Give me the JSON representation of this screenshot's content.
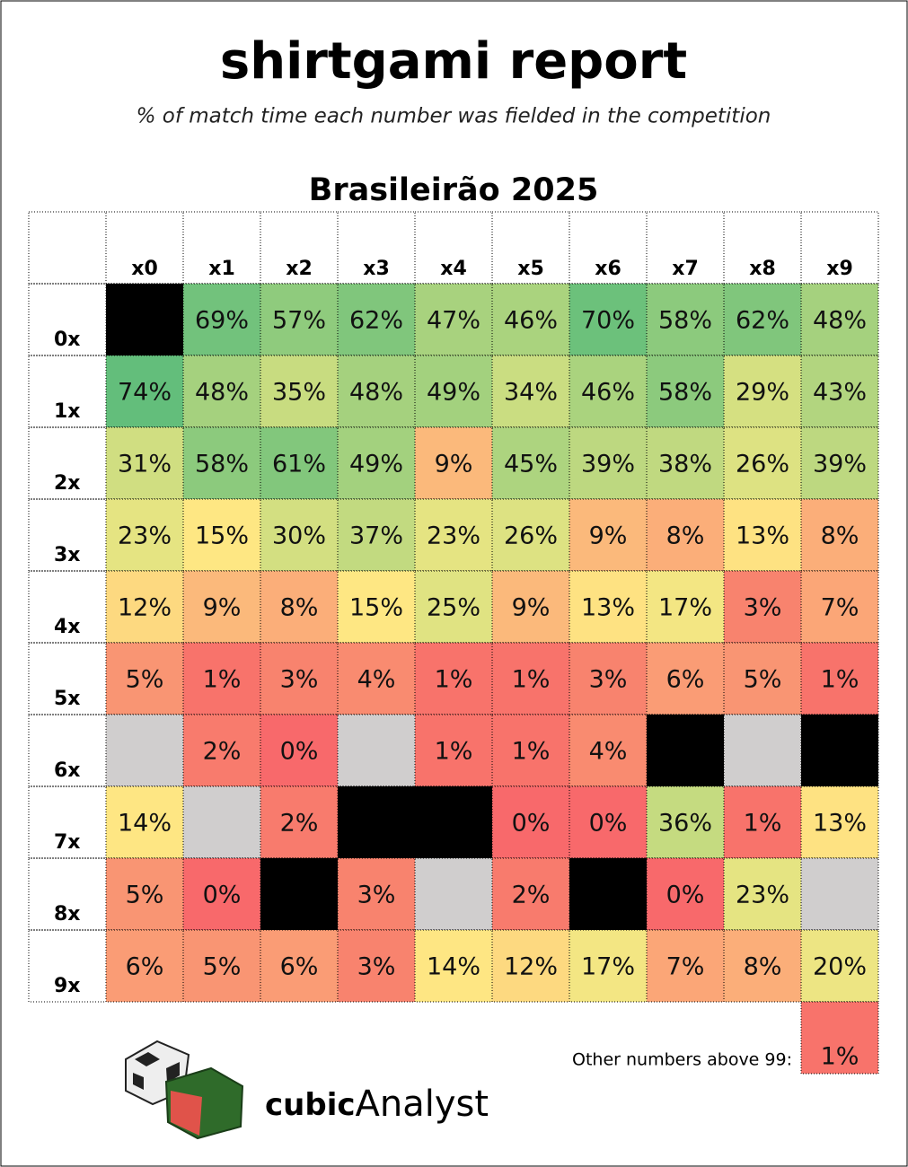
{
  "chart_data": {
    "type": "heatmap",
    "title": "shirtgami report",
    "subtitle": "% of match time each number was fielded in the competition",
    "heading": "Brasileirão 2025",
    "columns": [
      "x0",
      "x1",
      "x2",
      "x3",
      "x4",
      "x5",
      "x6",
      "x7",
      "x8",
      "x9"
    ],
    "rows": [
      "0x",
      "1x",
      "2x",
      "3x",
      "4x",
      "5x",
      "6x",
      "7x",
      "8x",
      "9x"
    ],
    "values": [
      [
        null,
        69,
        57,
        62,
        47,
        46,
        70,
        58,
        62,
        48
      ],
      [
        74,
        48,
        35,
        48,
        49,
        34,
        46,
        58,
        29,
        43
      ],
      [
        31,
        58,
        61,
        49,
        9,
        45,
        39,
        38,
        26,
        39
      ],
      [
        23,
        15,
        30,
        37,
        23,
        26,
        9,
        8,
        13,
        8
      ],
      [
        12,
        9,
        8,
        15,
        25,
        9,
        13,
        17,
        3,
        7
      ],
      [
        5,
        1,
        3,
        4,
        1,
        1,
        3,
        6,
        5,
        1
      ],
      [
        null,
        2,
        0,
        null,
        1,
        1,
        4,
        null,
        null,
        null
      ],
      [
        14,
        null,
        2,
        null,
        null,
        0,
        0,
        36,
        1,
        13
      ],
      [
        5,
        0,
        null,
        3,
        null,
        2,
        null,
        0,
        23,
        null
      ],
      [
        6,
        5,
        6,
        3,
        14,
        12,
        17,
        7,
        8,
        20
      ]
    ],
    "value_labels": [
      [
        null,
        "69%",
        "57%",
        "62%",
        "47%",
        "46%",
        "70%",
        "58%",
        "62%",
        "48%"
      ],
      [
        "74%",
        "48%",
        "35%",
        "48%",
        "49%",
        "34%",
        "46%",
        "58%",
        "29%",
        "43%"
      ],
      [
        "31%",
        "58%",
        "61%",
        "49%",
        "9%",
        "45%",
        "39%",
        "38%",
        "26%",
        "39%"
      ],
      [
        "23%",
        "15%",
        "30%",
        "37%",
        "23%",
        "26%",
        "9%",
        "8%",
        "13%",
        "8%"
      ],
      [
        "12%",
        "9%",
        "8%",
        "15%",
        "25%",
        "9%",
        "13%",
        "17%",
        "3%",
        "7%"
      ],
      [
        "5%",
        "1%",
        "3%",
        "4%",
        "1%",
        "1%",
        "3%",
        "6%",
        "5%",
        "1%"
      ],
      [
        null,
        "2%",
        "0%",
        null,
        "1%",
        "1%",
        "4%",
        null,
        null,
        null
      ],
      [
        "14%",
        null,
        "2%",
        null,
        null,
        "0%",
        "0%",
        "36%",
        "1%",
        "13%"
      ],
      [
        "5%",
        "0%",
        null,
        "3%",
        null,
        "2%",
        null,
        "0%",
        "23%",
        null
      ],
      [
        "6%",
        "5%",
        "6%",
        "3%",
        "14%",
        "12%",
        "17%",
        "7%",
        "8%",
        "20%"
      ]
    ],
    "cell_colors": [
      [
        "#000000",
        "#72c27c",
        "#8fcb7d",
        "#80c67c",
        "#a8d27e",
        "#aad37e",
        "#6cc17b",
        "#8cca7d",
        "#80c67c",
        "#a5d17e"
      ],
      [
        "#63be7b",
        "#a5d17e",
        "#c8dc80",
        "#a5d17e",
        "#a3d17e",
        "#cadd81",
        "#aad37e",
        "#8cca7d",
        "#d5e081",
        "#b2d57f"
      ],
      [
        "#d0de81",
        "#8cca7d",
        "#82c77c",
        "#a3d17e",
        "#fbb97b",
        "#add47f",
        "#bdd880",
        "#c0d980",
        "#dde282",
        "#bdd880"
      ],
      [
        "#e5e482",
        "#fee783",
        "#d3df81",
        "#c2da80",
        "#e5e482",
        "#dde282",
        "#fbb97b",
        "#fbae79",
        "#fee282",
        "#fbae79"
      ],
      [
        "#fdd980",
        "#fbb97b",
        "#fbae79",
        "#fee783",
        "#e0e382",
        "#fbb97b",
        "#fee282",
        "#f3e683",
        "#f8836e",
        "#fba677"
      ],
      [
        "#f99573",
        "#f8736b",
        "#f8836e",
        "#f98b70",
        "#f8736b",
        "#f8736b",
        "#f8836e",
        "#fa9c75",
        "#f99573",
        "#f8736b"
      ],
      [
        "#d0cece",
        "#f87b6d",
        "#f8696b",
        "#d0cece",
        "#f8736b",
        "#f8736b",
        "#f98b70",
        "#000000",
        "#d0cece",
        "#000000"
      ],
      [
        "#fee683",
        "#d0cece",
        "#f87b6d",
        "#000000",
        "#000000",
        "#f8696b",
        "#f8696b",
        "#c5db80",
        "#f8736b",
        "#fee282"
      ],
      [
        "#f99573",
        "#f8696b",
        "#000000",
        "#f8836e",
        "#d0cece",
        "#f87b6d",
        "#000000",
        "#f8696b",
        "#e5e482",
        "#d0cece"
      ],
      [
        "#fa9c75",
        "#f99573",
        "#fa9c75",
        "#f8836e",
        "#fee683",
        "#fdd980",
        "#f3e683",
        "#fba677",
        "#fbae79",
        "#ede583"
      ]
    ],
    "other": {
      "label": "Other numbers above 99:",
      "value": 1,
      "value_label": "1%",
      "color": "#f8736b"
    },
    "brand": {
      "bold": "cubic",
      "light": "Analyst"
    }
  }
}
